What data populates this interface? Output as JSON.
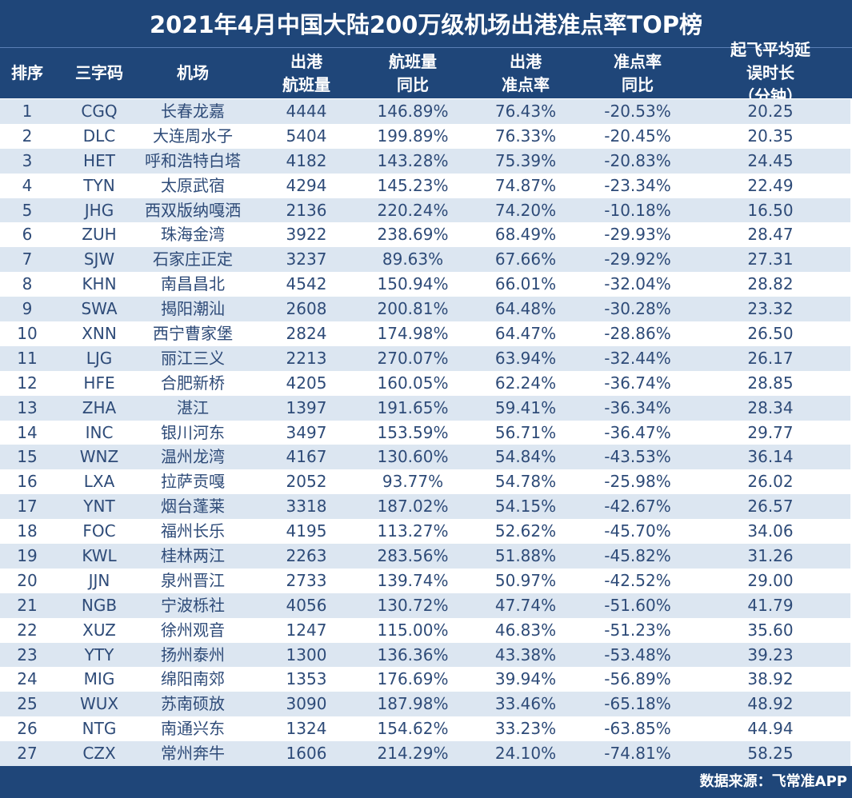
{
  "title": "2021年4月中国大陆200万级机场出港准点率TOP榜",
  "headers": [
    "排序",
    "三字码",
    "机场",
    "出港\n航班量",
    "航班量\n同比",
    "出港\n准点率",
    "准点率\n同比",
    "起飞平均延误时长\n（分钟）"
  ],
  "rows": [
    [
      "1",
      "CGQ",
      "长春龙嘉",
      "4444",
      "146.89%",
      "76.43%",
      "-20.53%",
      "20.25"
    ],
    [
      "2",
      "DLC",
      "大连周水子",
      "5404",
      "199.89%",
      "76.33%",
      "-20.45%",
      "20.35"
    ],
    [
      "3",
      "HET",
      "呼和浩特白塔",
      "4182",
      "143.28%",
      "75.39%",
      "-20.83%",
      "24.45"
    ],
    [
      "4",
      "TYN",
      "太原武宿",
      "4294",
      "145.23%",
      "74.87%",
      "-23.34%",
      "22.49"
    ],
    [
      "5",
      "JHG",
      "西双版纳嘎洒",
      "2136",
      "220.24%",
      "74.20%",
      "-10.18%",
      "16.50"
    ],
    [
      "6",
      "ZUH",
      "珠海金湾",
      "3922",
      "238.69%",
      "68.49%",
      "-29.93%",
      "28.47"
    ],
    [
      "7",
      "SJW",
      "石家庄正定",
      "3237",
      "89.63%",
      "67.66%",
      "-29.92%",
      "27.31"
    ],
    [
      "8",
      "KHN",
      "南昌昌北",
      "4542",
      "150.94%",
      "66.01%",
      "-32.04%",
      "28.82"
    ],
    [
      "9",
      "SWA",
      "揭阳潮汕",
      "2608",
      "200.81%",
      "64.48%",
      "-30.28%",
      "23.32"
    ],
    [
      "10",
      "XNN",
      "西宁曹家堡",
      "2824",
      "174.98%",
      "64.47%",
      "-28.86%",
      "26.50"
    ],
    [
      "11",
      "LJG",
      "丽江三义",
      "2213",
      "270.07%",
      "63.94%",
      "-32.44%",
      "26.17"
    ],
    [
      "12",
      "HFE",
      "合肥新桥",
      "4205",
      "160.05%",
      "62.24%",
      "-36.74%",
      "28.85"
    ],
    [
      "13",
      "ZHA",
      "湛江",
      "1397",
      "191.65%",
      "59.41%",
      "-36.34%",
      "28.34"
    ],
    [
      "14",
      "INC",
      "银川河东",
      "3497",
      "153.59%",
      "56.71%",
      "-36.47%",
      "29.77"
    ],
    [
      "15",
      "WNZ",
      "温州龙湾",
      "4167",
      "130.60%",
      "54.84%",
      "-43.53%",
      "36.14"
    ],
    [
      "16",
      "LXA",
      "拉萨贡嘎",
      "2052",
      "93.77%",
      "54.78%",
      "-25.98%",
      "26.02"
    ],
    [
      "17",
      "YNT",
      "烟台蓬莱",
      "3318",
      "187.02%",
      "54.15%",
      "-42.67%",
      "26.57"
    ],
    [
      "18",
      "FOC",
      "福州长乐",
      "4195",
      "113.27%",
      "52.62%",
      "-45.70%",
      "34.06"
    ],
    [
      "19",
      "KWL",
      "桂林两江",
      "2263",
      "283.56%",
      "51.88%",
      "-45.82%",
      "31.26"
    ],
    [
      "20",
      "JJN",
      "泉州晋江",
      "2733",
      "139.74%",
      "50.97%",
      "-42.52%",
      "29.00"
    ],
    [
      "21",
      "NGB",
      "宁波栎社",
      "4056",
      "130.72%",
      "47.74%",
      "-51.60%",
      "41.79"
    ],
    [
      "22",
      "XUZ",
      "徐州观音",
      "1247",
      "115.00%",
      "46.83%",
      "-51.23%",
      "35.60"
    ],
    [
      "23",
      "YTY",
      "扬州泰州",
      "1300",
      "136.36%",
      "43.38%",
      "-53.48%",
      "39.23"
    ],
    [
      "24",
      "MIG",
      "绵阳南郊",
      "1353",
      "176.69%",
      "39.94%",
      "-56.89%",
      "38.92"
    ],
    [
      "25",
      "WUX",
      "苏南硕放",
      "3090",
      "187.98%",
      "33.46%",
      "-65.18%",
      "48.92"
    ],
    [
      "26",
      "NTG",
      "南通兴东",
      "1324",
      "154.62%",
      "33.23%",
      "-63.85%",
      "44.94"
    ],
    [
      "27",
      "CZX",
      "常州奔牛",
      "1606",
      "214.29%",
      "24.10%",
      "-74.81%",
      "58.25"
    ]
  ],
  "footer": "数据来源：飞常准APP",
  "colors": {
    "header_bg": "#1f4679",
    "row_alt": "#dce6f1",
    "text": "#2e4b78"
  }
}
